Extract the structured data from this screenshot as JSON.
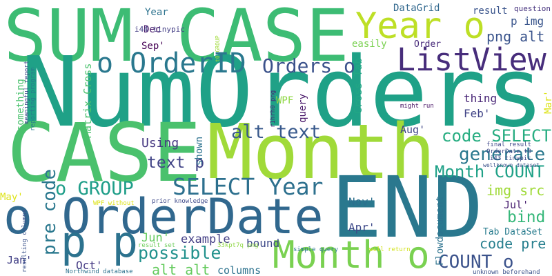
{
  "words": [
    {
      "text": "SUM CASE",
      "color": "#3dbc74"
    },
    {
      "text": "NumOrders",
      "color": "#1fa187"
    },
    {
      "text": "CASE",
      "color": "#4ac16d"
    },
    {
      "text": "Month",
      "color": "#a0da39"
    },
    {
      "text": "END",
      "color": "#2a788e"
    },
    {
      "text": "o OrderDate",
      "color": "#31688e"
    },
    {
      "text": "p p",
      "color": "#2c728e"
    },
    {
      "text": "Month o",
      "color": "#7ad151"
    },
    {
      "text": "Year o",
      "color": "#bddf26"
    },
    {
      "text": "ListView",
      "color": "#472d7b"
    },
    {
      "text": "o OrderID",
      "color": "#2a788e"
    },
    {
      "text": "Orders o",
      "color": "#3b528b"
    },
    {
      "text": "alt text",
      "color": "#38598c"
    },
    {
      "text": "code SELECT",
      "color": "#27ad81"
    },
    {
      "text": "generate",
      "color": "#2a788e"
    },
    {
      "text": "Month COUNT",
      "color": "#1fa187"
    },
    {
      "text": "SELECT Year",
      "color": "#2d708e"
    },
    {
      "text": "o GROUP",
      "color": "#1f9e89"
    },
    {
      "text": "text p",
      "color": "#414487"
    },
    {
      "text": "Using",
      "color": "#453781"
    },
    {
      "text": "img src",
      "color": "#a0da39"
    },
    {
      "text": "bind",
      "color": "#35b779"
    },
    {
      "text": "possible",
      "color": "#21918c"
    },
    {
      "text": "alt alt",
      "color": "#65cb5e"
    },
    {
      "text": "COUNT o",
      "color": "#3b528b"
    },
    {
      "text": "code pre",
      "color": "#277f8e"
    },
    {
      "text": "example",
      "color": "#433e85"
    },
    {
      "text": "bound",
      "color": "#3e4989"
    },
    {
      "text": "columns",
      "color": "#2c728e"
    },
    {
      "text": "Jun'",
      "color": "#65cb5e"
    },
    {
      "text": "Oct'",
      "color": "#443983"
    },
    {
      "text": "Jan'",
      "color": "#424086"
    },
    {
      "text": "May'",
      "color": "#dde318"
    },
    {
      "text": "Nov'",
      "color": "#2d708e"
    },
    {
      "text": "Apr'",
      "color": "#3e4989"
    },
    {
      "text": "Jul'",
      "color": "#481f70"
    },
    {
      "text": "Aug'",
      "color": "#404688"
    },
    {
      "text": "Feb'",
      "color": "#414487"
    },
    {
      "text": "thing",
      "color": "#482576"
    },
    {
      "text": "Sep'",
      "color": "#440154"
    },
    {
      "text": "Dec",
      "color": "#481a6c"
    },
    {
      "text": "Year",
      "color": "#2c728e"
    },
    {
      "text": "DataGrid",
      "color": "#31688e"
    },
    {
      "text": "result",
      "color": "#3a548c"
    },
    {
      "text": "question",
      "color": "#46337e"
    },
    {
      "text": "p img",
      "color": "#39558c"
    },
    {
      "text": "png alt",
      "color": "#3a548c"
    },
    {
      "text": "easily",
      "color": "#7ad151"
    },
    {
      "text": "Order",
      "color": "#472a7a"
    },
    {
      "text": "i44 tinypic",
      "color": "#433e85"
    },
    {
      "text": "query",
      "color": "#481769"
    },
    {
      "text": "WPF",
      "color": "#8fd744"
    },
    {
      "text": "Cross Tab",
      "color": "#22a785"
    },
    {
      "text": "Tab DataSet",
      "color": "#287c8e"
    },
    {
      "text": "might run",
      "color": "#471365"
    },
    {
      "text": "final result",
      "color": "#3f4788"
    },
    {
      "text": "OrderDate t0",
      "color": "#3e4a89"
    },
    {
      "text": "i43 tinypic",
      "color": "#404688"
    },
    {
      "text": "wellknown dataset",
      "color": "#3b528b"
    },
    {
      "text": "prior knowledge",
      "color": "#3e4989"
    },
    {
      "text": "WPF without",
      "color": "#dde318"
    },
    {
      "text": "result set",
      "color": "#6ccd5a"
    },
    {
      "text": "33kpt7q png",
      "color": "#8fd744"
    },
    {
      "text": "simple query",
      "color": "#2a788e"
    },
    {
      "text": "will return",
      "color": "#d2e21b"
    },
    {
      "text": "unknown beforehand",
      "color": "#3b528b"
    },
    {
      "text": "Northwind database",
      "color": "#2c728e"
    },
    {
      "text": "Flowdocument",
      "color": "#2c728e"
    },
    {
      "text": "Mar'",
      "color": "#dde318"
    },
    {
      "text": "pre code",
      "color": "#2a788e"
    },
    {
      "text": "Matrix Cross",
      "color": "#4ac16d"
    },
    {
      "text": "something",
      "color": "#4ac16d"
    },
    {
      "text": "meaningful report",
      "color": "#3e4989"
    },
    {
      "text": "reporting program",
      "color": "#287d8e"
    },
    {
      "text": "shown",
      "color": "#2c728e"
    },
    {
      "text": "t0 GROUP",
      "color": "#a0da39"
    },
    {
      "text": "r1hrh0 png",
      "color": "#482878"
    },
    {
      "text": "resulting columns",
      "color": "#3b528b"
    }
  ]
}
